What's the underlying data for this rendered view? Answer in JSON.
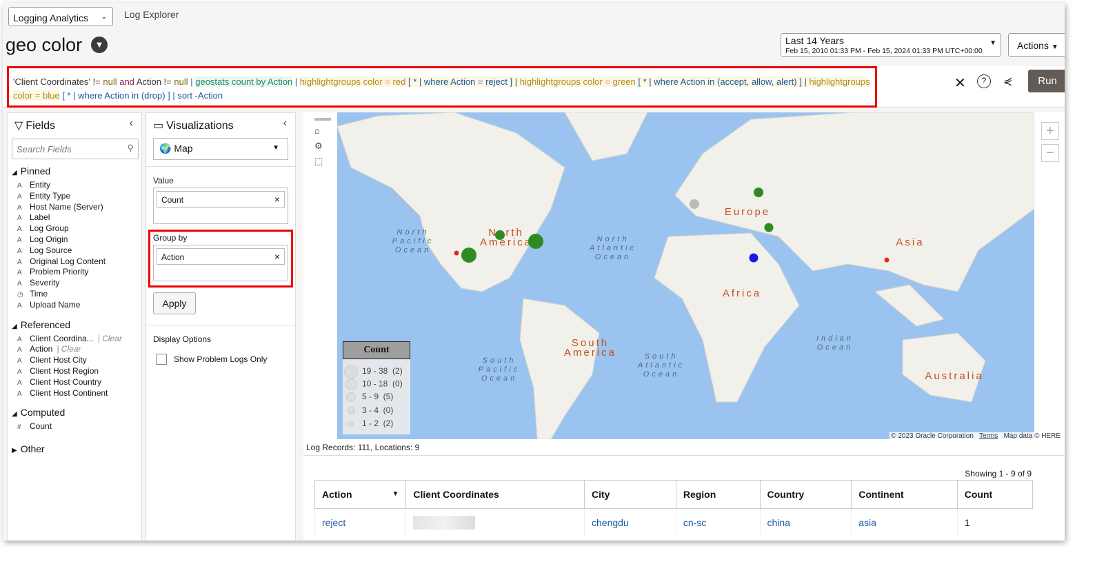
{
  "app": {
    "selector": "Logging Analytics",
    "breadcrumb": "Log Explorer",
    "title": "geo color"
  },
  "time": {
    "range": "Last 14 Years",
    "detail": "Feb 15, 2010 01:33 PM - Feb 15, 2024 01:33 PM UTC+00:00"
  },
  "actions_label": "Actions",
  "query": {
    "p1": "'Client Coordinates'",
    "p2": " != ",
    "p3": "null",
    "p4": " and ",
    "p5": "Action != ",
    "p6": "null",
    "p7": " | ",
    "p8": "geostats count by Action",
    "p9": " | ",
    "p10": "highlightgroups color = red",
    "p11": " [ * | where Action = reject ] | ",
    "p12": "highlightgroups color = green",
    "p13": " [ * | where Action in (accept, allow, alert) ] | ",
    "p14": "highlightgroups color = blue",
    "p15": " [ * | where Action in (drop) ] | ",
    "p16": "sort -Action"
  },
  "run_label": "Run",
  "fields": {
    "title": "Fields",
    "search_placeholder": "Search Fields",
    "pinned": "Pinned",
    "pinned_items": [
      [
        "A",
        "Entity"
      ],
      [
        "A",
        "Entity Type"
      ],
      [
        "A",
        "Host Name (Server)"
      ],
      [
        "A",
        "Label"
      ],
      [
        "A",
        "Log Group"
      ],
      [
        "A",
        "Log Origin"
      ],
      [
        "A",
        "Log Source"
      ],
      [
        "A",
        "Original Log Content"
      ],
      [
        "A",
        "Problem Priority"
      ],
      [
        "A",
        "Severity"
      ],
      [
        "◷",
        "Time"
      ],
      [
        "A",
        "Upload Name"
      ]
    ],
    "referenced": "Referenced",
    "referenced_items": [
      [
        "A",
        "Client Coordina...",
        "| Clear"
      ],
      [
        "A",
        "Action",
        "| Clear"
      ],
      [
        "A",
        "Client Host City",
        ""
      ],
      [
        "A",
        "Client Host Region",
        ""
      ],
      [
        "A",
        "Client Host Country",
        ""
      ],
      [
        "A",
        "Client Host Continent",
        ""
      ]
    ],
    "computed": "Computed",
    "computed_items": [
      [
        "#",
        "Count"
      ]
    ],
    "other": "Other"
  },
  "viz": {
    "title": "Visualizations",
    "type": "Map",
    "value_label": "Value",
    "value_chip": "Count",
    "group_label": "Group by",
    "group_chip": "Action",
    "apply": "Apply",
    "display_options": "Display Options",
    "show_problem": "Show Problem Logs Only"
  },
  "map": {
    "labels": {
      "na": "North America",
      "sa": "South America",
      "eu": "Europe",
      "af": "Africa",
      "as": "Asia",
      "au": "Australia",
      "npo": "North Pacific Ocean",
      "nao": "North Atlantic Ocean",
      "spo": "South Pacific Ocean",
      "sao": "South Atlantic Ocean",
      "io": "Indian Ocean"
    },
    "colors": {
      "red": "#e8271c",
      "green": "#2e8b22",
      "blue": "#1a1ae6",
      "gray": "#bbbbbb"
    },
    "legend": {
      "title": "Count",
      "rows": [
        "19 - 38  (2)",
        "10 - 18  (0)",
        "5 - 9  (5)",
        "3 - 4  (0)",
        "1 - 2  (2)"
      ]
    },
    "copyright": "© 2023 Oracle Corporation",
    "terms": "Terms",
    "mapdata": "Map data © HERE"
  },
  "summary": "Log Records: 111, Locations: 9",
  "table": {
    "showing": "Showing 1 - 9 of 9",
    "columns": [
      "Action",
      "Client Coordinates",
      "City",
      "Region",
      "Country",
      "Continent",
      "Count"
    ],
    "rows": [
      {
        "action": "reject",
        "city": "chengdu",
        "region": "cn-sc",
        "country": "china",
        "continent": "asia",
        "count": "1"
      }
    ]
  }
}
